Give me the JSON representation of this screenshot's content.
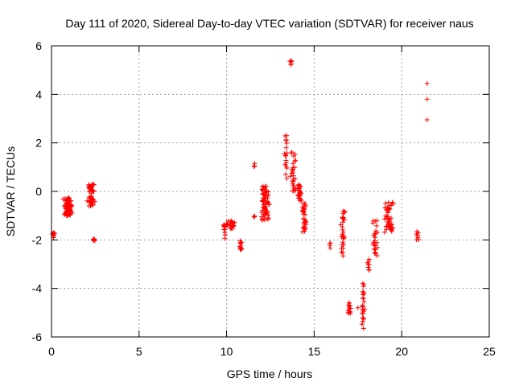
{
  "chart_data": {
    "type": "scatter",
    "title": "Day 111 of 2020, Sidereal Day-to-day VTEC variation (SDTVAR) for receiver naus",
    "xlabel": "GPS time / hours",
    "ylabel": "SDTVAR / TECUs",
    "xlim": [
      0,
      25
    ],
    "ylim": [
      -6,
      6
    ],
    "xticks": [
      0,
      5,
      10,
      15,
      20,
      25
    ],
    "yticks": [
      -6,
      -4,
      -2,
      0,
      2,
      4,
      6
    ],
    "grid": true,
    "marker": "+",
    "color": "#ff0000",
    "series": [
      {
        "name": "SDTVAR",
        "clusters": [
          {
            "x": [
              0.05,
              0.2
            ],
            "y": [
              -1.95,
              -1.7
            ],
            "n": 8
          },
          {
            "x": [
              0.6,
              1.3
            ],
            "y": [
              -1.0,
              -0.25
            ],
            "n": 80
          },
          {
            "x": [
              2.0,
              2.5
            ],
            "y": [
              -0.6,
              0.3
            ],
            "n": 50
          },
          {
            "x": [
              2.35,
              2.5
            ],
            "y": [
              -2.05,
              -1.95
            ],
            "n": 5
          },
          {
            "x": [
              9.8,
              9.95
            ],
            "y": [
              -1.95,
              -1.3
            ],
            "n": 10
          },
          {
            "x": [
              9.95,
              10.1
            ],
            "y": [
              -1.4,
              -1.2
            ],
            "n": 6
          },
          {
            "x": [
              10.15,
              10.5
            ],
            "y": [
              -1.55,
              -1.2
            ],
            "n": 25
          },
          {
            "x": [
              10.7,
              10.9
            ],
            "y": [
              -2.4,
              -2.0
            ],
            "n": 12
          },
          {
            "x": [
              11.5,
              11.65
            ],
            "y": [
              1.0,
              1.2
            ],
            "n": 3
          },
          {
            "x": [
              11.5,
              11.65
            ],
            "y": [
              -1.15,
              -1.0
            ],
            "n": 3
          },
          {
            "x": [
              11.9,
              12.5
            ],
            "y": [
              -1.2,
              0.3
            ],
            "n": 70
          },
          {
            "x": [
              13.3,
              13.5
            ],
            "y": [
              0.4,
              2.4
            ],
            "n": 15
          },
          {
            "x": [
              13.6,
              13.75
            ],
            "y": [
              5.2,
              5.4
            ],
            "n": 5
          },
          {
            "x": [
              13.6,
              14.0
            ],
            "y": [
              0.0,
              1.7
            ],
            "n": 30
          },
          {
            "x": [
              14.0,
              14.3
            ],
            "y": [
              -0.4,
              0.3
            ],
            "n": 25
          },
          {
            "x": [
              14.3,
              14.6
            ],
            "y": [
              -1.8,
              -0.4
            ],
            "n": 30
          },
          {
            "x": [
              15.85,
              15.95
            ],
            "y": [
              -2.4,
              -2.1
            ],
            "n": 4
          },
          {
            "x": [
              16.5,
              16.8
            ],
            "y": [
              -2.7,
              -0.8
            ],
            "n": 30
          },
          {
            "x": [
              16.9,
              17.1
            ],
            "y": [
              -5.1,
              -4.5
            ],
            "n": 14
          },
          {
            "x": [
              17.7,
              17.9
            ],
            "y": [
              -5.7,
              -3.7
            ],
            "n": 25
          },
          {
            "x": [
              18.0,
              18.2
            ],
            "y": [
              -3.3,
              -2.8
            ],
            "n": 8
          },
          {
            "x": [
              18.3,
              18.7
            ],
            "y": [
              -2.6,
              -1.2
            ],
            "n": 25
          },
          {
            "x": [
              18.9,
              19.6
            ],
            "y": [
              -1.7,
              -0.4
            ],
            "n": 45
          },
          {
            "x": [
              20.8,
              21.0
            ],
            "y": [
              -2.0,
              -1.6
            ],
            "n": 8
          }
        ],
        "points": [
          [
            17.5,
            -4.8
          ],
          [
            18.6,
            -2.65
          ],
          [
            21.45,
            4.45
          ],
          [
            21.45,
            3.8
          ],
          [
            21.45,
            2.95
          ],
          [
            13.3,
            1.55
          ],
          [
            13.4,
            1.8
          ],
          [
            0.05,
            -1.75
          ],
          [
            2.4,
            -2.0
          ],
          [
            11.6,
            1.15
          ]
        ]
      }
    ]
  }
}
